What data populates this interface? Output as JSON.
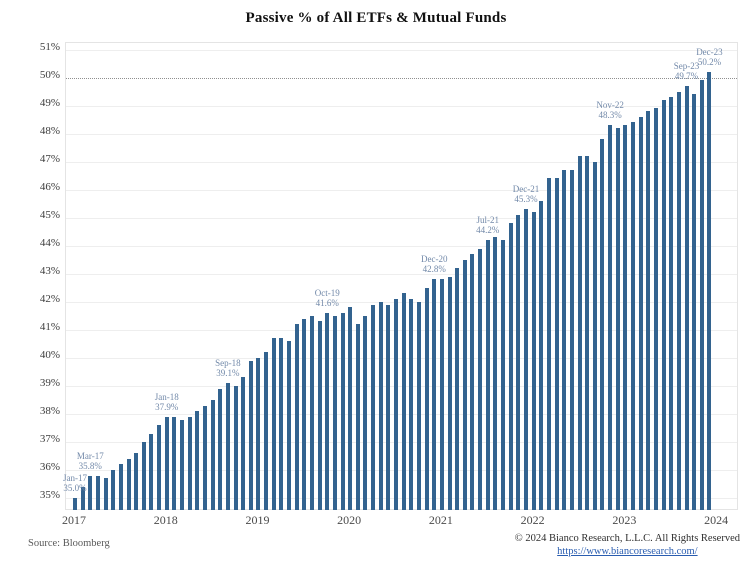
{
  "title": "Passive % of All ETFs & Mutual Funds",
  "source_label": "Source: Bloomberg",
  "footer": {
    "copyright": "© 2024 Bianco Research, L.L.C. All Rights Reserved",
    "url": "https://www.biancoresearch.com/"
  },
  "chart_data": {
    "type": "bar",
    "title": "Passive % of All ETFs & Mutual Funds",
    "xlabel": "",
    "ylabel": "",
    "ylim": [
      34.5,
      51.5
    ],
    "grid": true,
    "legend": false,
    "reference_line": {
      "value": 50,
      "style": "dotted"
    },
    "yticks": [
      35,
      36,
      37,
      38,
      39,
      40,
      41,
      42,
      43,
      44,
      45,
      46,
      47,
      48,
      49,
      50,
      51
    ],
    "ytick_suffix": "%",
    "xticks": [
      "2017",
      "2018",
      "2019",
      "2020",
      "2021",
      "2022",
      "2023",
      "2024"
    ],
    "categories": [
      "Jan-17",
      "Feb-17",
      "Mar-17",
      "Apr-17",
      "May-17",
      "Jun-17",
      "Jul-17",
      "Aug-17",
      "Sep-17",
      "Oct-17",
      "Nov-17",
      "Dec-17",
      "Jan-18",
      "Feb-18",
      "Mar-18",
      "Apr-18",
      "May-18",
      "Jun-18",
      "Jul-18",
      "Aug-18",
      "Sep-18",
      "Oct-18",
      "Nov-18",
      "Dec-18",
      "Jan-19",
      "Feb-19",
      "Mar-19",
      "Apr-19",
      "May-19",
      "Jun-19",
      "Jul-19",
      "Aug-19",
      "Sep-19",
      "Oct-19",
      "Nov-19",
      "Dec-19",
      "Jan-20",
      "Feb-20",
      "Mar-20",
      "Apr-20",
      "May-20",
      "Jun-20",
      "Jul-20",
      "Aug-20",
      "Sep-20",
      "Oct-20",
      "Nov-20",
      "Dec-20",
      "Jan-21",
      "Feb-21",
      "Mar-21",
      "Apr-21",
      "May-21",
      "Jun-21",
      "Jul-21",
      "Aug-21",
      "Sep-21",
      "Oct-21",
      "Nov-21",
      "Dec-21",
      "Jan-22",
      "Feb-22",
      "Mar-22",
      "Apr-22",
      "May-22",
      "Jun-22",
      "Jul-22",
      "Aug-22",
      "Sep-22",
      "Oct-22",
      "Nov-22",
      "Dec-22",
      "Jan-23",
      "Feb-23",
      "Mar-23",
      "Apr-23",
      "May-23",
      "Jun-23",
      "Jul-23",
      "Aug-23",
      "Sep-23",
      "Oct-23",
      "Nov-23",
      "Dec-23"
    ],
    "values": [
      35.0,
      35.4,
      35.8,
      35.8,
      35.7,
      36.0,
      36.2,
      36.4,
      36.6,
      37.0,
      37.3,
      37.6,
      37.9,
      37.9,
      37.8,
      37.9,
      38.1,
      38.3,
      38.5,
      38.9,
      39.1,
      39.0,
      39.3,
      39.9,
      40.0,
      40.2,
      40.7,
      40.7,
      40.6,
      41.2,
      41.4,
      41.5,
      41.3,
      41.6,
      41.5,
      41.6,
      41.8,
      41.2,
      41.5,
      41.9,
      42.0,
      41.9,
      42.1,
      42.3,
      42.1,
      42.0,
      42.5,
      42.8,
      42.8,
      42.9,
      43.2,
      43.5,
      43.7,
      43.9,
      44.2,
      44.3,
      44.2,
      44.8,
      45.1,
      45.3,
      45.2,
      45.6,
      46.4,
      46.4,
      46.7,
      46.7,
      47.2,
      47.2,
      47.0,
      47.8,
      48.3,
      48.2,
      48.3,
      48.4,
      48.6,
      48.8,
      48.9,
      49.2,
      49.3,
      49.5,
      49.7,
      49.4,
      49.9,
      50.2
    ],
    "annotations": [
      {
        "index": 0,
        "line1": "Jan-17",
        "line2": "35.0%"
      },
      {
        "index": 2,
        "line1": "Mar-17",
        "line2": "35.8%"
      },
      {
        "index": 12,
        "line1": "Jan-18",
        "line2": "37.9%"
      },
      {
        "index": 20,
        "line1": "Sep-18",
        "line2": "39.1%"
      },
      {
        "index": 33,
        "line1": "Oct-19",
        "line2": "41.6%"
      },
      {
        "index": 47,
        "line1": "Dec-20",
        "line2": "42.8%"
      },
      {
        "index": 54,
        "line1": "Jul-21",
        "line2": "44.2%"
      },
      {
        "index": 59,
        "line1": "Dec-21",
        "line2": "45.3%"
      },
      {
        "index": 70,
        "line1": "Nov-22",
        "line2": "48.3%"
      },
      {
        "index": 80,
        "line1": "Sep-23",
        "line2": "49.7%"
      },
      {
        "index": 83,
        "line1": "Dec-23",
        "line2": "50.2%"
      }
    ],
    "colors": {
      "bar": "#33638f",
      "annotation_text": "#7289a9",
      "gridline": "#eeeeee",
      "reference_line": "#8f8f8f",
      "link": "#2a5db0"
    }
  }
}
